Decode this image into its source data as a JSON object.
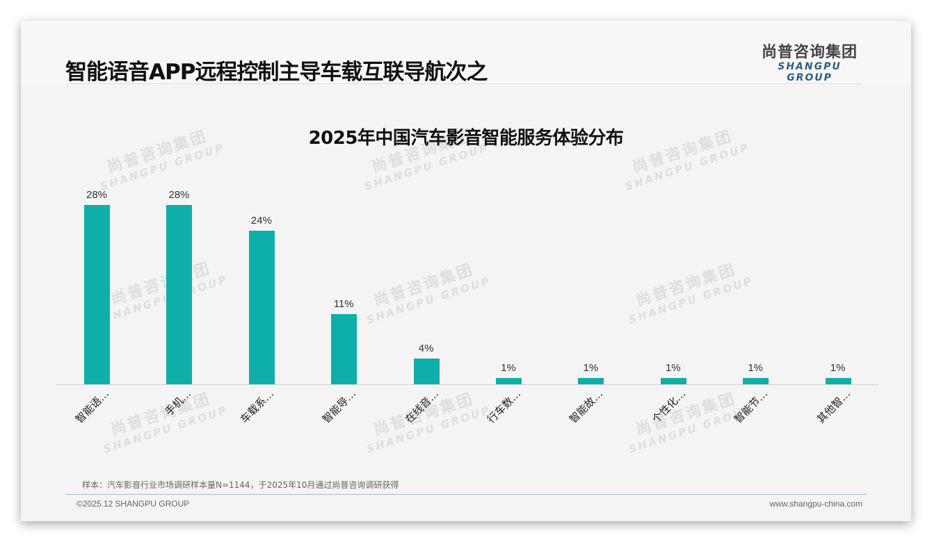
{
  "header": {
    "title": "智能语音APP远程控制主导车载互联导航次之",
    "logo_cn": "尚普咨询集团",
    "logo_en": "SHANGPU GROUP"
  },
  "watermark": {
    "cn": "尚普咨询集团",
    "en": "SHANGPU GROUP"
  },
  "chart_data": {
    "type": "bar",
    "title": "2025年中国汽车影音智能服务体验分布",
    "categories": [
      "智能语…",
      "手机…",
      "车载系…",
      "智能导…",
      "在线音…",
      "行车数…",
      "智能故…",
      "个性化…",
      "智能节…",
      "其他智…"
    ],
    "values": [
      28,
      28,
      24,
      11,
      4,
      1,
      1,
      1,
      1,
      1
    ],
    "value_labels": [
      "28%",
      "28%",
      "24%",
      "11%",
      "4%",
      "1%",
      "1%",
      "1%",
      "1%",
      "1%"
    ],
    "unit": "%",
    "xlabel": "",
    "ylabel": "",
    "ylim": [
      0,
      30
    ],
    "grid": false,
    "legend": "none",
    "bar_color": "#0eafa8"
  },
  "footer": {
    "note": "样本：汽车影音行业市场调研样本量N=1144，于2025年10月通过尚普咨询调研获得",
    "copyright": "©2025.12 SHANGPU GROUP",
    "website": "www.shangpu-china.com"
  }
}
